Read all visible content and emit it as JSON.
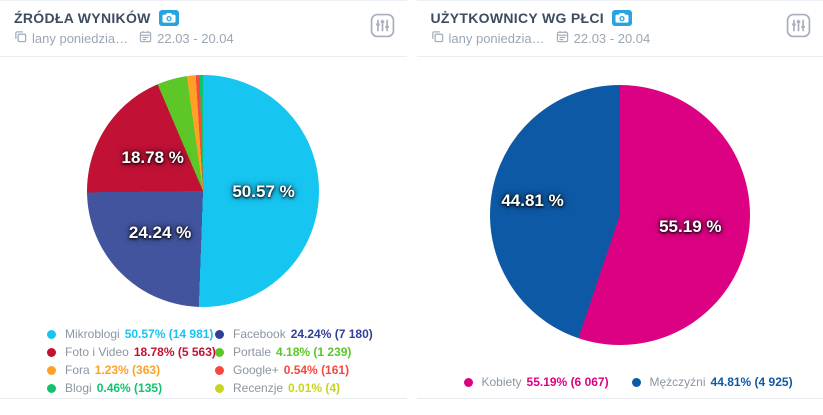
{
  "cards": [
    {
      "title": "ŹRÓDŁA WYNIKÓW",
      "project": "lany poniedzia…",
      "date_range": "22.03 - 20.04"
    },
    {
      "title": "UŻYTKOWNICY WG PŁCI",
      "project": "lany poniedzia…",
      "date_range": "22.03 - 20.04"
    }
  ],
  "icons": {
    "header_action": "camera-icon",
    "project": "copy-icon",
    "period": "calendar-icon",
    "settings": "sliders-icon"
  },
  "colors": {
    "camera_badge": "#27a3e0",
    "title_text": "#3e4c61",
    "meta_text": "#9aa7b3",
    "legend_name_text": "#8b96a2",
    "divider": "#e9edf2",
    "icon_gray": "#a5b0bc"
  },
  "chart_data": [
    {
      "type": "pie",
      "title": "ŹRÓDŁA WYNIKÓW",
      "direction": "clockwise",
      "start_angle_deg": 0,
      "label_threshold_pct": 10,
      "label_radius_factor": 0.52,
      "legend_position": "bottom",
      "slices": [
        {
          "name": "Mikroblogi",
          "pct": 50.57,
          "count": "14 981",
          "color": "#17c5f1",
          "legend_value": "50.57% (14 981)"
        },
        {
          "name": "Facebook",
          "pct": 24.24,
          "count": "7 180",
          "color": "#42549e",
          "legend_color": "#303f97",
          "legend_value": "24.24% (7 180)"
        },
        {
          "name": "Foto i Video",
          "pct": 18.78,
          "count": "5 563",
          "color": "#c11236",
          "legend_value": "18.78% (5 563)"
        },
        {
          "name": "Portale",
          "pct": 4.18,
          "count": "1 239",
          "color": "#5cc726",
          "legend_value": "4.18% (1 239)"
        },
        {
          "name": "Fora",
          "pct": 1.23,
          "count": "363",
          "color": "#ffa126",
          "legend_value": "1.23% (363)"
        },
        {
          "name": "Google+",
          "pct": 0.54,
          "count": "161",
          "color": "#f8473d",
          "legend_value": "0.54% (161)"
        },
        {
          "name": "Blogi",
          "pct": 0.46,
          "count": "135",
          "color": "#10c46e",
          "legend_value": "0.46% (135)"
        },
        {
          "name": "Recenzje",
          "pct": 0.01,
          "count": "4",
          "color": "#c8d41f",
          "legend_value": "0.01% (4)"
        }
      ]
    },
    {
      "type": "pie",
      "title": "UŻYTKOWNICY WG PŁCI",
      "direction": "clockwise",
      "start_angle_deg": 0,
      "label_threshold_pct": 10,
      "label_radius_factor": 0.55,
      "legend_position": "bottom",
      "slices": [
        {
          "name": "Kobiety",
          "pct": 55.19,
          "count": "6 067",
          "color": "#dc0083",
          "legend_value": "55.19% (6 067)"
        },
        {
          "name": "Mężczyźni",
          "pct": 44.81,
          "count": "4 925",
          "color": "#0e59a5",
          "legend_value": "44.81% (4 925)",
          "label_radius_factor": 0.68
        }
      ]
    }
  ]
}
